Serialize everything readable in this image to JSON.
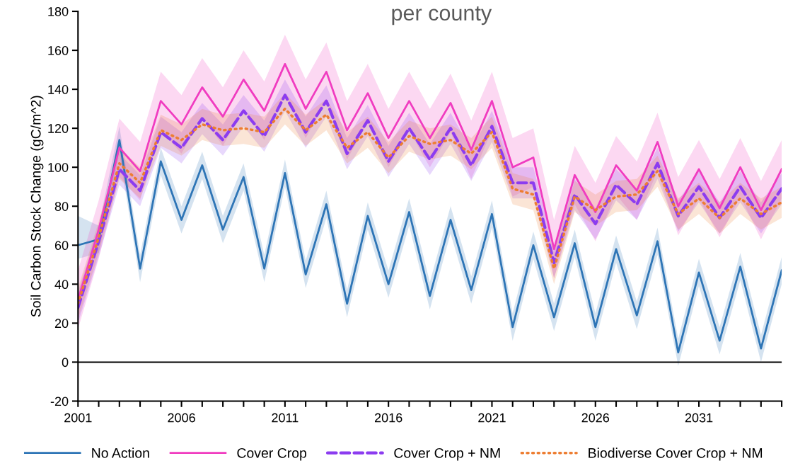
{
  "chart_data": {
    "type": "line",
    "title": "per county",
    "ylabel": "Soil Carbon Stock Change (gC/m^2)",
    "x": [
      2001,
      2002,
      2003,
      2004,
      2005,
      2006,
      2007,
      2008,
      2009,
      2010,
      2011,
      2012,
      2013,
      2014,
      2015,
      2016,
      2017,
      2018,
      2019,
      2020,
      2021,
      2022,
      2023,
      2024,
      2025,
      2026,
      2027,
      2028,
      2029,
      2030,
      2031,
      2032,
      2033,
      2034,
      2035
    ],
    "series": [
      {
        "name": "No Action",
        "color": "#2e75b6",
        "line_style": "solid",
        "values": [
          60,
          63,
          114,
          48,
          103,
          73,
          101,
          68,
          95,
          48,
          97,
          45,
          81,
          30,
          75,
          40,
          77,
          34,
          73,
          37,
          76,
          18,
          60,
          23,
          61,
          18,
          58,
          24,
          62,
          5,
          46,
          11,
          49,
          7,
          47
        ],
        "upper": [
          75,
          70,
          121,
          55,
          110,
          80,
          108,
          75,
          102,
          55,
          104,
          52,
          88,
          37,
          82,
          47,
          84,
          41,
          80,
          44,
          83,
          25,
          67,
          30,
          68,
          25,
          65,
          31,
          69,
          12,
          53,
          18,
          56,
          14,
          54
        ],
        "lower": [
          53,
          56,
          107,
          41,
          96,
          66,
          94,
          61,
          88,
          41,
          90,
          38,
          74,
          23,
          68,
          33,
          70,
          27,
          66,
          30,
          69,
          11,
          53,
          16,
          54,
          11,
          51,
          17,
          55,
          -2,
          39,
          4,
          42,
          0,
          40
        ]
      },
      {
        "name": "Cover Crop",
        "color": "#f03cc0",
        "line_style": "solid",
        "values": [
          32,
          68,
          110,
          98,
          134,
          122,
          141,
          126,
          145,
          129,
          153,
          130,
          149,
          119,
          138,
          115,
          134,
          115,
          133,
          109,
          134,
          100,
          105,
          58,
          96,
          77,
          101,
          88,
          113,
          80,
          99,
          79,
          100,
          78,
          99
        ],
        "upper": [
          47,
          83,
          125,
          113,
          149,
          137,
          156,
          141,
          160,
          144,
          168,
          145,
          164,
          134,
          153,
          130,
          149,
          130,
          148,
          124,
          149,
          115,
          120,
          73,
          111,
          92,
          116,
          103,
          128,
          95,
          114,
          94,
          115,
          93,
          114
        ],
        "lower": [
          17,
          53,
          95,
          83,
          119,
          107,
          126,
          111,
          130,
          114,
          138,
          115,
          134,
          104,
          123,
          100,
          119,
          100,
          118,
          94,
          119,
          85,
          90,
          43,
          81,
          62,
          86,
          73,
          98,
          65,
          84,
          64,
          85,
          63,
          84
        ]
      },
      {
        "name": "Cover Crop + NM",
        "color": "#8c3cf0",
        "line_style": "dashed",
        "values": [
          28,
          62,
          99,
          88,
          118,
          110,
          125,
          114,
          129,
          116,
          137,
          118,
          134,
          107,
          124,
          103,
          120,
          104,
          120,
          101,
          121,
          92,
          92,
          51,
          86,
          71,
          91,
          81,
          102,
          75,
          90,
          74,
          90,
          74,
          89
        ],
        "upper": [
          36,
          70,
          107,
          96,
          126,
          118,
          133,
          122,
          137,
          124,
          145,
          126,
          142,
          115,
          132,
          111,
          128,
          112,
          128,
          109,
          129,
          100,
          100,
          59,
          94,
          79,
          99,
          89,
          110,
          83,
          98,
          82,
          98,
          82,
          97
        ],
        "lower": [
          20,
          54,
          91,
          80,
          110,
          102,
          117,
          106,
          121,
          108,
          129,
          110,
          126,
          99,
          116,
          95,
          112,
          96,
          112,
          93,
          113,
          84,
          84,
          43,
          78,
          63,
          83,
          73,
          94,
          67,
          82,
          66,
          82,
          66,
          81
        ]
      },
      {
        "name": "Biodiverse Cover Crop + NM",
        "color": "#ed7d31",
        "line_style": "dotted",
        "values": [
          30,
          64,
          102,
          92,
          119,
          114,
          122,
          119,
          120,
          118,
          130,
          119,
          127,
          110,
          118,
          105,
          116,
          112,
          114,
          107,
          118,
          89,
          86,
          48,
          85,
          78,
          85,
          86,
          98,
          76,
          84,
          74,
          84,
          76,
          82
        ],
        "upper": [
          38,
          72,
          110,
          100,
          127,
          122,
          130,
          127,
          128,
          126,
          138,
          127,
          135,
          118,
          126,
          113,
          124,
          120,
          122,
          115,
          126,
          97,
          94,
          56,
          93,
          86,
          93,
          94,
          106,
          84,
          92,
          82,
          92,
          84,
          90
        ],
        "lower": [
          22,
          56,
          94,
          84,
          111,
          106,
          114,
          111,
          112,
          110,
          122,
          111,
          119,
          102,
          110,
          97,
          108,
          104,
          106,
          99,
          110,
          81,
          78,
          40,
          77,
          70,
          77,
          78,
          90,
          68,
          76,
          66,
          76,
          68,
          74
        ]
      }
    ],
    "xlim": [
      2001,
      2035
    ],
    "xticks": [
      2001,
      {
        "value": 2002,
        "label": null
      },
      {
        "value": 2003,
        "label": null
      },
      {
        "value": 2004,
        "label": null
      },
      {
        "value": 2005,
        "label": null
      },
      2006,
      {
        "value": 2007,
        "label": null
      },
      {
        "value": 2008,
        "label": null
      },
      {
        "value": 2009,
        "label": null
      },
      {
        "value": 2010,
        "label": null
      },
      2011,
      {
        "value": 2012,
        "label": null
      },
      {
        "value": 2013,
        "label": null
      },
      {
        "value": 2014,
        "label": null
      },
      {
        "value": 2015,
        "label": null
      },
      2016,
      {
        "value": 2017,
        "label": null
      },
      {
        "value": 2018,
        "label": null
      },
      {
        "value": 2019,
        "label": null
      },
      {
        "value": 2020,
        "label": null
      },
      2021,
      {
        "value": 2022,
        "label": null
      },
      {
        "value": 2023,
        "label": null
      },
      {
        "value": 2024,
        "label": null
      },
      {
        "value": 2025,
        "label": null
      },
      2026,
      {
        "value": 2027,
        "label": null
      },
      {
        "value": 2028,
        "label": null
      },
      {
        "value": 2029,
        "label": null
      },
      {
        "value": 2030,
        "label": null
      },
      2031,
      {
        "value": 2032,
        "label": null
      },
      {
        "value": 2033,
        "label": null
      },
      {
        "value": 2034,
        "label": null
      },
      {
        "value": 2035,
        "label": null
      }
    ],
    "ylim": [
      -20,
      180
    ],
    "yticks": [
      -20,
      0,
      20,
      40,
      60,
      80,
      100,
      120,
      140,
      160,
      180
    ],
    "ref_lines": [
      {
        "axis": "y",
        "value": 0,
        "color": "#000000"
      }
    ],
    "grid": false,
    "legend": "bottom",
    "marker": "none"
  }
}
